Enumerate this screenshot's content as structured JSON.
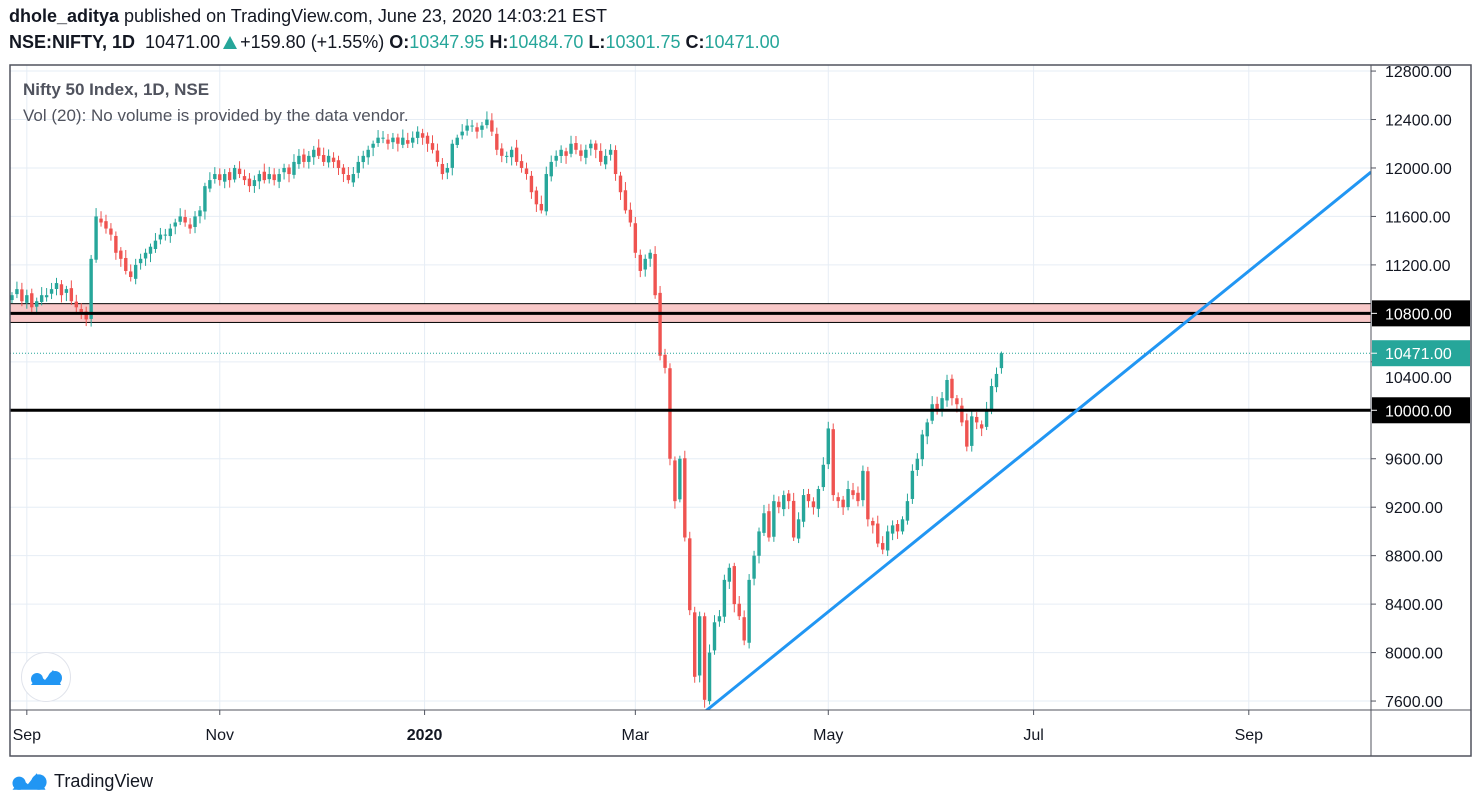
{
  "header": {
    "author": "dhole_aditya",
    "published_text": "published on TradingView.com, June 23, 2020 14:03:21 EST",
    "symbol": "NSE:NIFTY, 1D",
    "last": "10471.00",
    "change": "+159.80 (+1.55%)",
    "o_label": "O:",
    "o": "10347.95",
    "h_label": "H:",
    "h": "10484.70",
    "l_label": "L:",
    "l": "10301.75",
    "c_label": "C:",
    "c": "10471.00"
  },
  "legend": {
    "title": "Nifty 50 Index, 1D, NSE",
    "volume": "Vol (20): No volume is provided by the data vendor."
  },
  "footer": {
    "brand": "TradingView"
  },
  "colors": {
    "up": "#26a69a",
    "down": "#ef5350",
    "trendline": "#2196f3",
    "zone": "#f8c8c8",
    "level": "#000000",
    "grid": "#e6edf5"
  },
  "chart_data": {
    "type": "candlestick",
    "title": "Nifty 50 Index, 1D, NSE",
    "x_unit": "bar index (daily bars, 0 = early Sep 2019)",
    "xlim": [
      -0.4,
      274.7
    ],
    "ylim": [
      7526,
      12850
    ],
    "y_ticks": [
      7600,
      8000,
      8400,
      8800,
      9200,
      9600,
      10000,
      10400,
      10800,
      11200,
      11600,
      12000,
      12400,
      12800
    ],
    "x_ticks": [
      {
        "label": "Sep",
        "index": 3,
        "bold": false
      },
      {
        "label": "Nov",
        "index": 42,
        "bold": false
      },
      {
        "label": "2020",
        "index": 83.4,
        "bold": true
      },
      {
        "label": "Mar",
        "index": 126,
        "bold": false
      },
      {
        "label": "May",
        "index": 165,
        "bold": false
      },
      {
        "label": "Jul",
        "index": 206.5,
        "bold": false
      },
      {
        "label": "Sep",
        "index": 250,
        "bold": false
      }
    ],
    "closes": [
      10950,
      11000,
      10900,
      10950,
      10850,
      10900,
      10950,
      10950,
      11000,
      11050,
      10950,
      11000,
      10900,
      10850,
      10800,
      10750,
      11250,
      11600,
      11550,
      11500,
      11450,
      11300,
      11250,
      11150,
      11100,
      11200,
      11250,
      11300,
      11350,
      11400,
      11450,
      11450,
      11500,
      11550,
      11600,
      11550,
      11500,
      11600,
      11650,
      11850,
      11900,
      11950,
      11900,
      11950,
      11900,
      12000,
      11950,
      11900,
      11850,
      11900,
      11950,
      11900,
      11950,
      11900,
      11950,
      12000,
      11950,
      12050,
      12100,
      12050,
      12100,
      12150,
      12100,
      12050,
      12100,
      12050,
      12000,
      11950,
      11900,
      11950,
      12050,
      12100,
      12150,
      12200,
      12250,
      12250,
      12200,
      12250,
      12200,
      12250,
      12200,
      12250,
      12300,
      12250,
      12200,
      12150,
      12050,
      11950,
      12000,
      12200,
      12250,
      12300,
      12350,
      12350,
      12300,
      12350,
      12400,
      12300,
      12150,
      12100,
      12100,
      12150,
      12050,
      12000,
      11950,
      11800,
      11700,
      11650,
      11950,
      12050,
      12100,
      12150,
      12100,
      12200,
      12150,
      12100,
      12150,
      12200,
      12150,
      12050,
      12100,
      12150,
      11950,
      11800,
      11650,
      11550,
      11300,
      11150,
      11250,
      11300,
      10950,
      10450,
      10350,
      9600,
      9250,
      9600,
      8950,
      8350,
      7800,
      8300,
      7610,
      8000,
      8250,
      8300,
      8600,
      8700,
      8400,
      8300,
      8100,
      8600,
      8800,
      9000,
      9150,
      8950,
      9250,
      9200,
      9300,
      9250,
      8950,
      9100,
      9300,
      9250,
      9200,
      9350,
      9550,
      9850,
      9300,
      9250,
      9200,
      9350,
      9300,
      9250,
      9500,
      9100,
      9050,
      8900,
      8850,
      9000,
      9050,
      9000,
      9100,
      9250,
      9500,
      9600,
      9800,
      9900,
      10050,
      10000,
      10100,
      10250,
      10100,
      10050,
      9900,
      9700,
      9950,
      9900,
      9850,
      10000,
      10200,
      10300,
      10471
    ],
    "last_bar": {
      "open": 10347.95,
      "high": 10484.7,
      "low": 10301.75,
      "close": 10471.0
    },
    "last_price_label": "10471.00",
    "horizontal_levels": [
      {
        "price": 10800,
        "label": "10800.00"
      },
      {
        "price": 10000,
        "label": "10000.00"
      }
    ],
    "zone": {
      "from": 10725,
      "to": 10880
    },
    "trendline": {
      "start": {
        "index": 140,
        "price": 7510
      },
      "end": {
        "index": 274.7,
        "price": 11966
      }
    }
  }
}
